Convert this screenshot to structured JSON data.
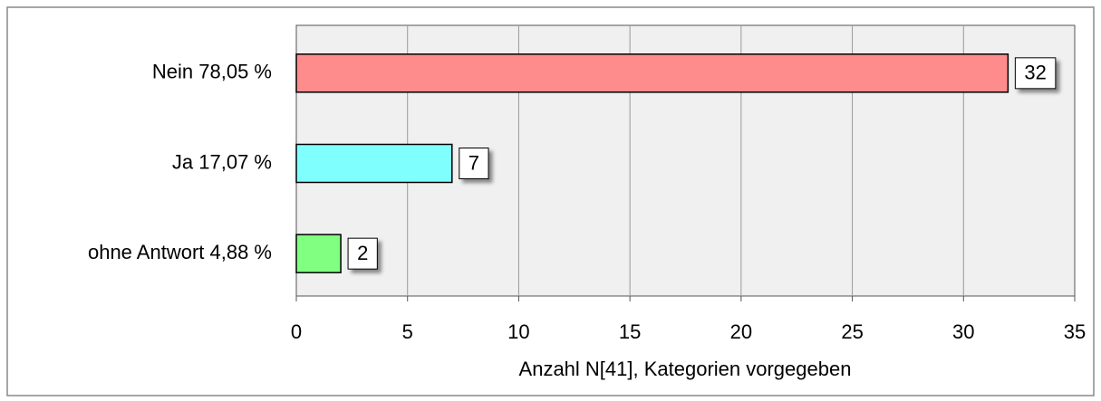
{
  "chart_data": {
    "type": "bar",
    "orientation": "horizontal",
    "categories": [
      "Nein 78,05 %",
      "Ja 17,07 %",
      "ohne Antwort 4,88 %"
    ],
    "values": [
      32,
      7,
      2
    ],
    "colors": [
      "#ff8c8c",
      "#80ffff",
      "#80ff80"
    ],
    "xlabel": "Anzahl N[41], Kategorien vorgegeben",
    "xlim": [
      0,
      35
    ],
    "xticks": [
      0,
      5,
      10,
      15,
      20,
      25,
      30,
      35
    ],
    "grid": true,
    "data_labels": true
  }
}
